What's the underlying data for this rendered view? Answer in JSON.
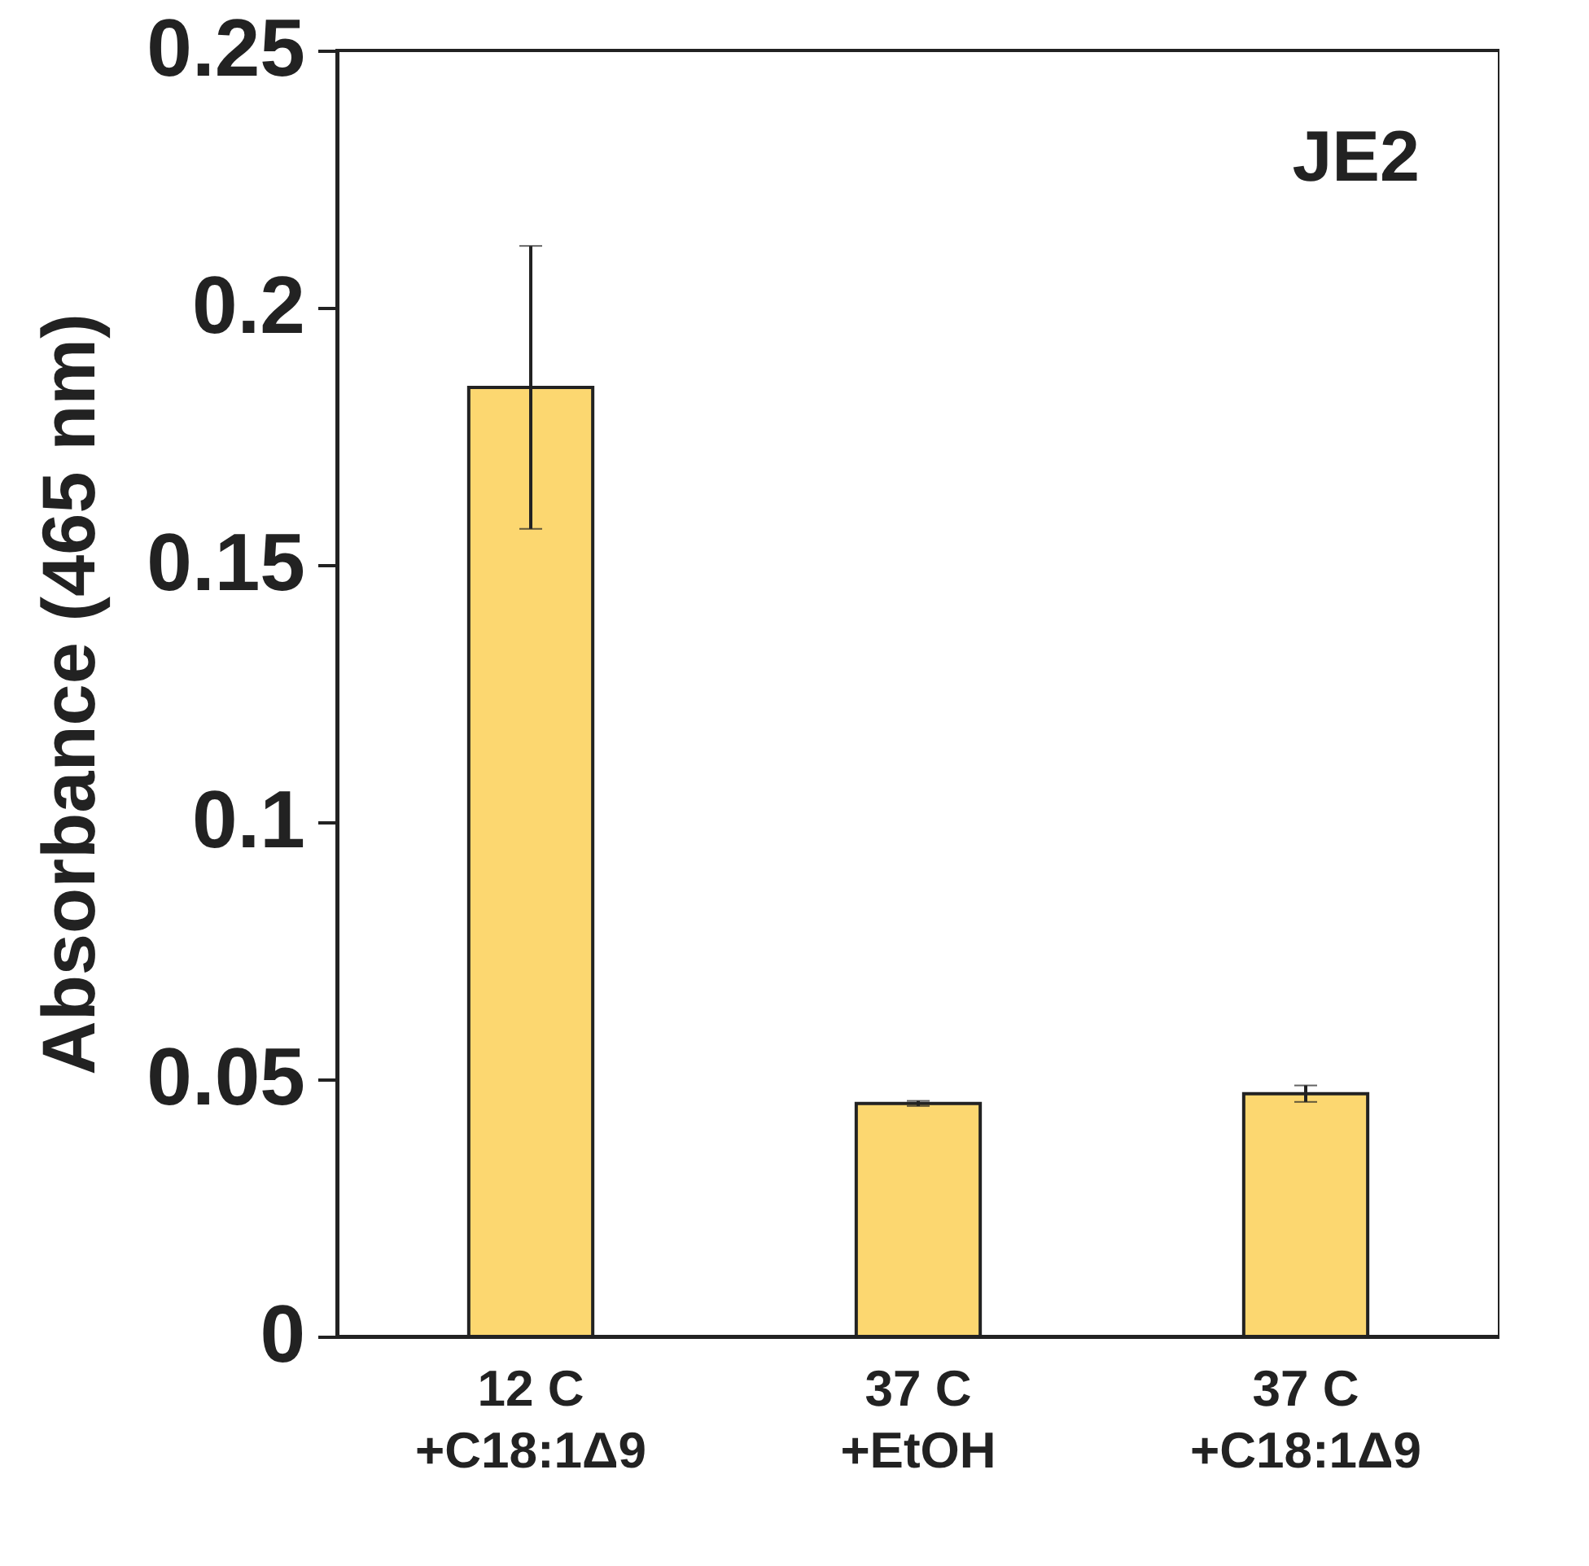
{
  "chart_data": {
    "type": "bar",
    "ylabel": "Absorbance (465 nm)",
    "annotations": [
      "JE2"
    ],
    "categories": [
      "12 C\n+C18:1Δ9",
      "37 C\n+EtOH",
      "37 C\n+C18:1Δ9"
    ],
    "values": [
      0.1845,
      0.0453,
      0.0472
    ],
    "color": "#fcd770",
    "errors": [
      [
        0.157,
        0.212
      ],
      0.0005,
      0.0016
    ],
    "ylim": [
      0,
      0.25
    ],
    "yticks": [
      0,
      0.05,
      0.1,
      0.15,
      0.2,
      0.25
    ],
    "grid": false
  }
}
